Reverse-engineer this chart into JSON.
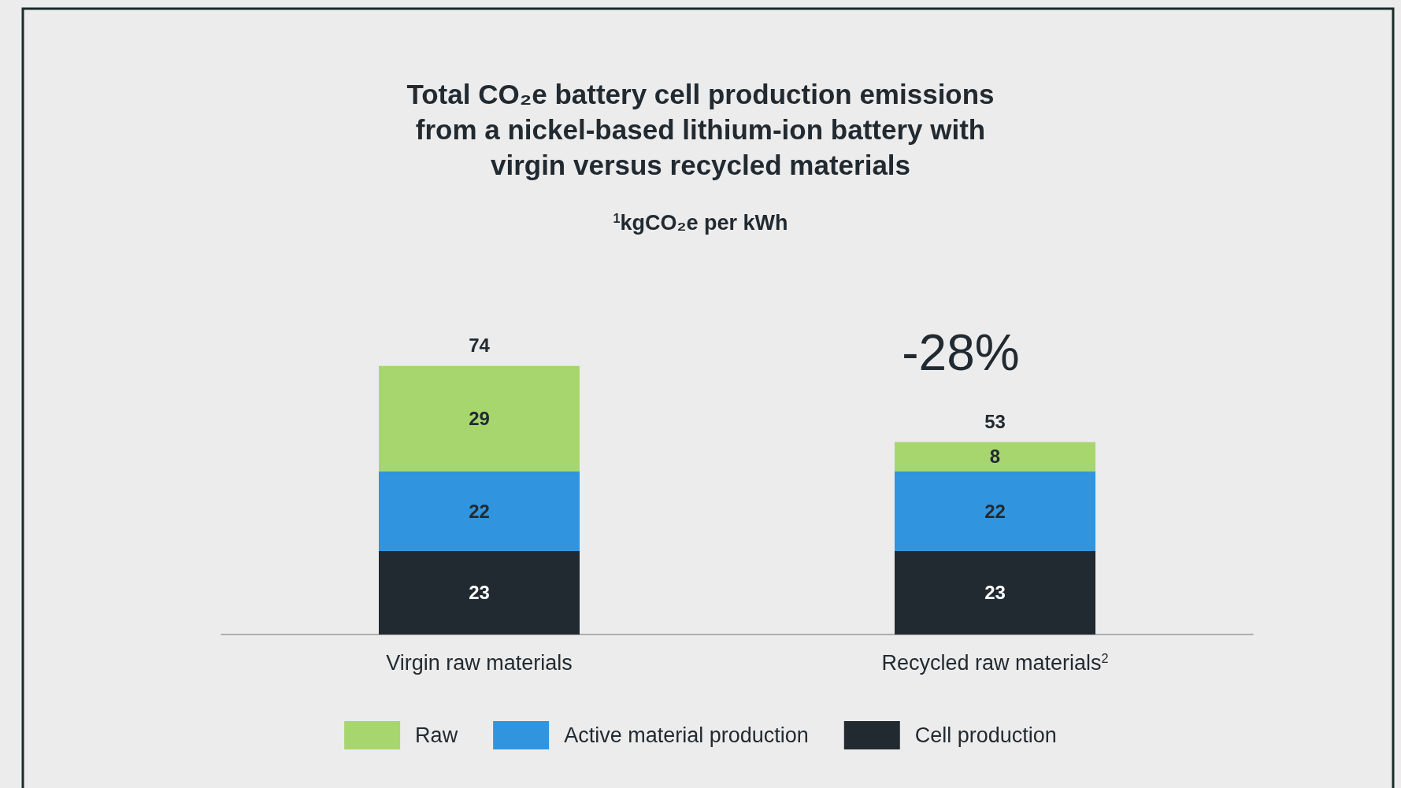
{
  "chart_data": {
    "type": "bar",
    "title": "Total CO₂e battery cell production emissions\nfrom a nickel-based lithium-ion battery with\nvirgin versus recycled materials",
    "subtitle": "$^{1}$kgCO₂e per kWh",
    "categories": [
      "Virgin raw materials",
      "Recycled raw materials$^{2}$"
    ],
    "stacked": true,
    "series": [
      {
        "name": "Cell production",
        "color": "#222a31",
        "values": [
          23,
          23
        ]
      },
      {
        "name": "Active material production",
        "color": "#3095de",
        "values": [
          22,
          22
        ]
      },
      {
        "name": "Raw",
        "color": "#a8d66e",
        "values": [
          29,
          8
        ]
      }
    ],
    "totals": [
      "74",
      "53"
    ],
    "data_labels": true,
    "annotations": [
      "-28%"
    ],
    "legend": "bottom",
    "grid": false
  }
}
